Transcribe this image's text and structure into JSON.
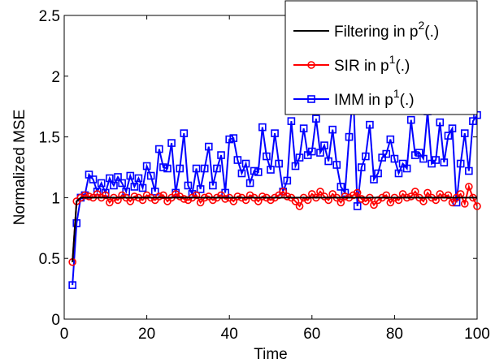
{
  "chart_data": {
    "type": "line",
    "title": "",
    "xlabel": "Time",
    "ylabel": "Normalized MSE",
    "xlim": [
      0,
      100
    ],
    "ylim": [
      0,
      2.5
    ],
    "xticks": [
      "0",
      "20",
      "40",
      "60",
      "80",
      "100"
    ],
    "yticks": [
      "0",
      "0.5",
      "1",
      "1.5",
      "2",
      "2.5"
    ],
    "grid": false,
    "legend_position": "top-right",
    "series": [
      {
        "name": "Filtering in p²(.)",
        "legend_text": "Filtering in p",
        "legend_sup": "2",
        "legend_tail": "(.)",
        "color": "#000000",
        "marker": "none",
        "x": [
          2,
          3,
          4,
          5,
          6,
          7,
          8,
          9,
          10,
          11,
          12,
          13,
          14,
          15,
          16,
          17,
          18,
          19,
          20,
          21,
          22,
          23,
          24,
          25,
          26,
          27,
          28,
          29,
          30,
          31,
          32,
          33,
          34,
          35,
          36,
          37,
          38,
          39,
          40,
          41,
          42,
          43,
          44,
          45,
          46,
          47,
          48,
          49,
          50,
          51,
          52,
          53,
          54,
          55,
          56,
          57,
          58,
          59,
          60,
          61,
          62,
          63,
          64,
          65,
          66,
          67,
          68,
          69,
          70,
          71,
          72,
          73,
          74,
          75,
          76,
          77,
          78,
          79,
          80,
          81,
          82,
          83,
          84,
          85,
          86,
          87,
          88,
          89,
          90,
          91,
          92,
          93,
          94,
          95,
          96,
          97,
          98,
          99,
          100
        ],
        "values": [
          0.47,
          0.97,
          1.0,
          1.0,
          1.0,
          1.0,
          1.0,
          1.0,
          1.0,
          1.0,
          1.0,
          1.0,
          1.0,
          1.0,
          1.0,
          1.0,
          1.0,
          1.0,
          1.0,
          1.0,
          1.0,
          1.0,
          1.0,
          1.0,
          1.0,
          1.0,
          1.0,
          1.0,
          1.0,
          1.0,
          1.0,
          1.0,
          1.0,
          1.0,
          1.0,
          1.0,
          1.0,
          1.0,
          1.0,
          1.0,
          1.0,
          1.0,
          1.0,
          1.0,
          1.0,
          1.0,
          1.0,
          1.0,
          1.0,
          1.0,
          1.0,
          1.0,
          1.0,
          1.0,
          1.0,
          1.0,
          1.0,
          1.0,
          1.0,
          1.0,
          1.0,
          1.0,
          1.0,
          1.0,
          1.0,
          1.0,
          1.0,
          1.0,
          1.0,
          1.0,
          1.0,
          1.0,
          1.0,
          1.0,
          1.0,
          1.0,
          1.0,
          1.0,
          1.0,
          1.0,
          1.0,
          1.0,
          1.0,
          1.0,
          1.0,
          1.0,
          1.0,
          1.0,
          1.0,
          1.0,
          1.0,
          1.0,
          1.0,
          1.0,
          1.0,
          1.0,
          1.0,
          1.0,
          1.0
        ]
      },
      {
        "name": "SIR in p¹(.)",
        "legend_text": "SIR in p",
        "legend_sup": "1",
        "legend_tail": "(.)",
        "color": "#ff0000",
        "marker": "circle",
        "x": [
          2,
          3,
          4,
          5,
          6,
          7,
          8,
          9,
          10,
          11,
          12,
          13,
          14,
          15,
          16,
          17,
          18,
          19,
          20,
          21,
          22,
          23,
          24,
          25,
          26,
          27,
          28,
          29,
          30,
          31,
          32,
          33,
          34,
          35,
          36,
          37,
          38,
          39,
          40,
          41,
          42,
          43,
          44,
          45,
          46,
          47,
          48,
          49,
          50,
          51,
          52,
          53,
          54,
          55,
          56,
          57,
          58,
          59,
          60,
          61,
          62,
          63,
          64,
          65,
          66,
          67,
          68,
          69,
          70,
          71,
          72,
          73,
          74,
          75,
          76,
          77,
          78,
          79,
          80,
          81,
          82,
          83,
          84,
          85,
          86,
          87,
          88,
          89,
          90,
          91,
          92,
          93,
          94,
          95,
          96,
          97,
          98,
          99,
          100
        ],
        "values": [
          0.47,
          0.97,
          1.0,
          1.02,
          1.01,
          1.0,
          1.03,
          1.0,
          1.02,
          0.96,
          1.0,
          0.98,
          1.02,
          1.0,
          0.97,
          1.01,
          1.0,
          0.98,
          1.02,
          1.0,
          0.98,
          1.01,
          1.02,
          0.97,
          1.0,
          1.03,
          1.01,
          0.99,
          0.98,
          1.0,
          1.02,
          0.96,
          1.0,
          1.01,
          0.98,
          1.0,
          1.02,
          0.99,
          1.0,
          0.97,
          1.01,
          1.0,
          0.98,
          1.02,
          1.0,
          0.97,
          1.01,
          1.0,
          0.98,
          1.0,
          1.02,
          1.05,
          1.01,
          1.0,
          0.97,
          0.93,
          1.0,
          0.98,
          1.03,
          1.0,
          1.05,
          1.01,
          0.98,
          1.03,
          1.0,
          0.96,
          1.01,
          1.0,
          1.02,
          1.04,
          0.99,
          0.97,
          1.0,
          0.94,
          0.98,
          1.0,
          1.02,
          0.96,
          1.0,
          0.98,
          1.03,
          1.0,
          1.01,
          1.05,
          1.0,
          0.97,
          1.04,
          1.0,
          0.98,
          1.03,
          1.0,
          1.02,
          0.96,
          1.0,
          1.03,
          0.95,
          1.09,
          1.0,
          0.93
        ]
      },
      {
        "name": "IMM in p¹(.)",
        "legend_text": "IMM in p",
        "legend_sup": "1",
        "legend_tail": "(.)",
        "color": "#0000ff",
        "marker": "square",
        "x": [
          2,
          3,
          4,
          5,
          6,
          7,
          8,
          9,
          10,
          11,
          12,
          13,
          14,
          15,
          16,
          17,
          18,
          19,
          20,
          21,
          22,
          23,
          24,
          25,
          26,
          27,
          28,
          29,
          30,
          31,
          32,
          33,
          34,
          35,
          36,
          37,
          38,
          39,
          40,
          41,
          42,
          43,
          44,
          45,
          46,
          47,
          48,
          49,
          50,
          51,
          52,
          53,
          54,
          55,
          56,
          57,
          58,
          59,
          60,
          61,
          62,
          63,
          64,
          65,
          66,
          67,
          68,
          69,
          70,
          71,
          72,
          73,
          74,
          75,
          76,
          77,
          78,
          79,
          80,
          81,
          82,
          83,
          84,
          85,
          86,
          87,
          88,
          89,
          90,
          91,
          92,
          93,
          94,
          95,
          96,
          97,
          98,
          99,
          100
        ],
        "values": [
          0.28,
          0.79,
          1.0,
          1.02,
          1.19,
          1.15,
          1.05,
          1.12,
          1.04,
          1.16,
          1.1,
          1.17,
          1.12,
          1.05,
          1.18,
          1.09,
          1.16,
          1.08,
          1.26,
          1.18,
          1.05,
          1.4,
          1.25,
          1.24,
          1.45,
          1.04,
          1.24,
          1.53,
          1.1,
          1.03,
          1.24,
          1.07,
          1.24,
          1.42,
          1.1,
          1.24,
          1.35,
          1.04,
          1.48,
          1.49,
          1.31,
          1.2,
          1.28,
          1.12,
          1.22,
          1.21,
          1.58,
          1.34,
          1.23,
          1.53,
          1.28,
          1.05,
          1.14,
          1.63,
          1.26,
          1.33,
          1.57,
          1.35,
          1.38,
          1.65,
          1.37,
          1.43,
          1.3,
          1.56,
          1.27,
          1.09,
          1.04,
          1.5,
          1.86,
          0.93,
          1.25,
          1.34,
          1.6,
          1.15,
          1.2,
          1.33,
          1.36,
          1.48,
          1.32,
          1.2,
          1.28,
          1.24,
          1.64,
          1.35,
          1.37,
          1.32,
          1.71,
          1.28,
          1.31,
          1.62,
          1.29,
          1.51,
          1.57,
          0.96,
          1.28,
          1.53,
          1.22,
          1.63,
          1.68
        ]
      }
    ]
  }
}
